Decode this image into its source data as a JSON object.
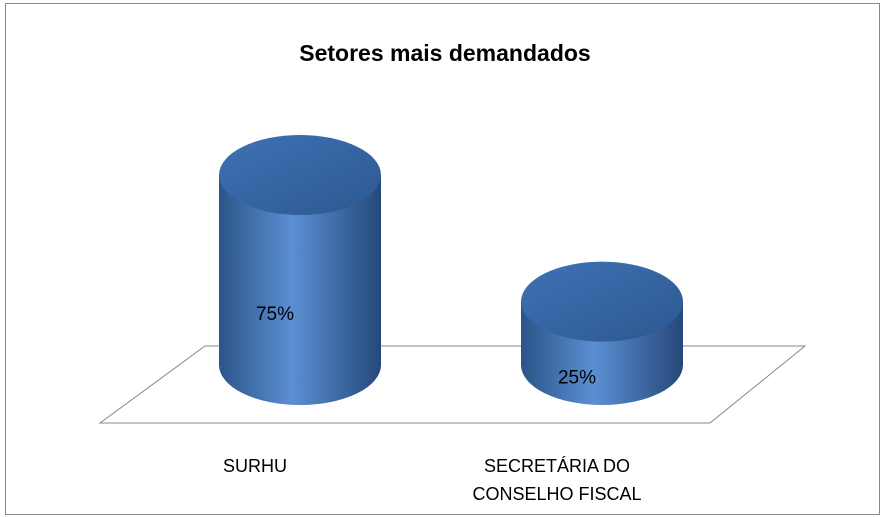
{
  "chart_data": {
    "type": "bar",
    "shape": "cylinder",
    "title": "Setores mais demandados",
    "categories": [
      "SURHU",
      "SECRETÁRIA DO CONSELHO FISCAL"
    ],
    "values": [
      75,
      25
    ],
    "value_labels": [
      "75%",
      "25%"
    ],
    "color": "#4f81bd"
  }
}
